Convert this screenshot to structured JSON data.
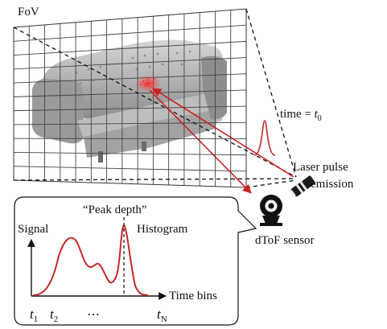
{
  "fov_label": "FoV",
  "time_label_prefix": "time = ",
  "time_label_var": "t",
  "time_label_sub": "0",
  "laser_label_line1": "Laser pulse",
  "laser_label_line2": "emission",
  "sensor_label": "dToF sensor",
  "peak_label": "“Peak depth”",
  "signal_label": "Signal",
  "histogram_label": "Histogram",
  "time_bins_label": "Time bins",
  "t1_var": "t",
  "t1_sub": "1",
  "t2_var": "t",
  "t2_sub": "2",
  "ellipsis": "⋯",
  "tn_var": "t",
  "tn_sub": "N",
  "colors": {
    "ray": "#cc2020",
    "curve": "#c42a2a",
    "line": "#111111",
    "grid": "#444444"
  },
  "icons": [
    "sofa-photo",
    "laser-emitter-icon",
    "webcam-sensor-icon"
  ]
}
